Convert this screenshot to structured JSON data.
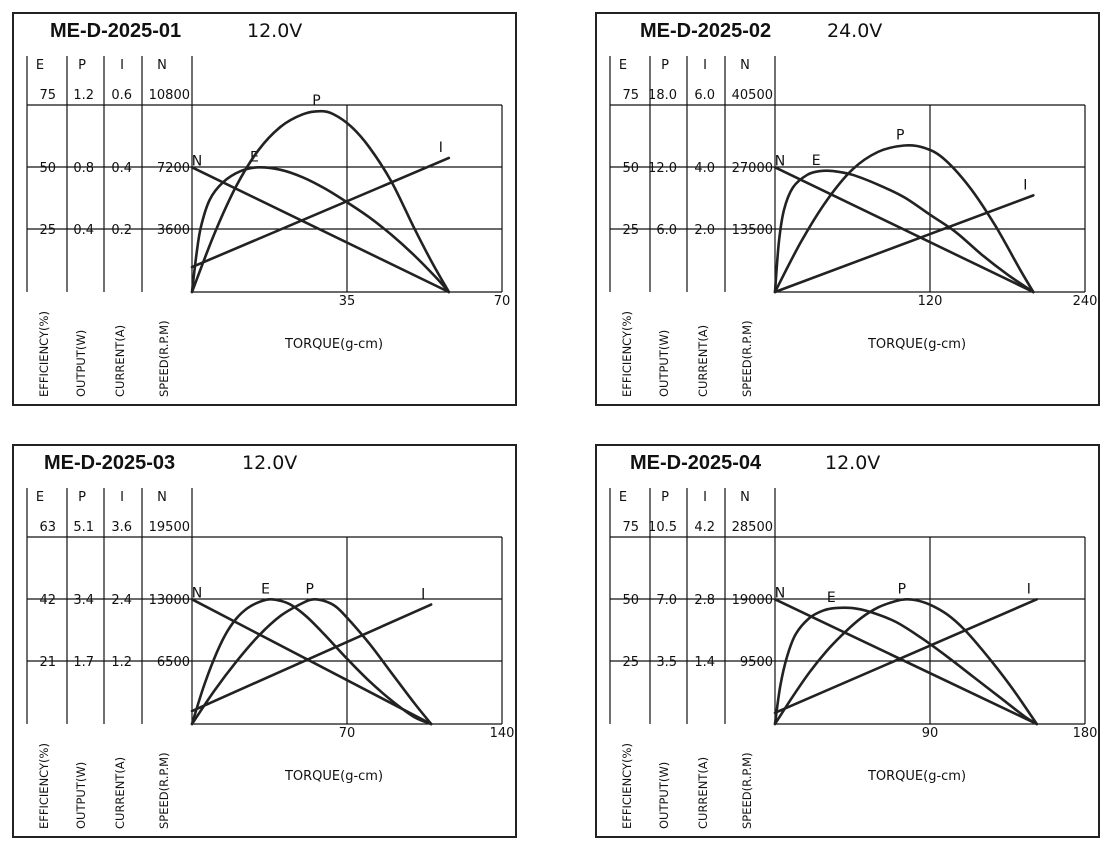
{
  "chart_data": [
    {
      "type": "line",
      "model": "ME-D-2025-01",
      "voltage": "12.0V",
      "column_headers": [
        "E",
        "P",
        "I",
        "N"
      ],
      "axis_labels": [
        "EFFICIENCY(%)",
        "OUTPUT(W)",
        "CURRENT(A)",
        "SPEED(R.P.M)"
      ],
      "xlabel": "TORQUE(g-cm)",
      "x_ticks": [
        "35",
        "70"
      ],
      "xlim": [
        0,
        70
      ],
      "y_table": [
        [
          "75",
          "1.2",
          "0.6",
          "10800"
        ],
        [
          "50",
          "0.8",
          "0.4",
          "7200"
        ],
        [
          "25",
          "0.4",
          "0.2",
          "3600"
        ]
      ],
      "ylim_fraction_of_top": [
        0,
        1
      ],
      "curve_labels": [
        "N",
        "E",
        "P",
        "I"
      ],
      "series": [
        {
          "name": "N",
          "unit": "R.P.M",
          "x": [
            0,
            58
          ],
          "y": [
            7200,
            0
          ]
        },
        {
          "name": "E",
          "unit": "%",
          "x": [
            0,
            1,
            2,
            4,
            7,
            11,
            15,
            20,
            25,
            30,
            35,
            40,
            45,
            50,
            55,
            58
          ],
          "y": [
            0,
            15,
            26,
            37,
            44,
            48.5,
            50,
            49,
            46,
            41.5,
            36,
            30,
            23,
            15,
            6,
            0
          ]
        },
        {
          "name": "P",
          "unit": "W",
          "x": [
            0,
            5,
            10,
            15,
            20,
            25,
            29,
            32,
            36,
            40,
            45,
            50,
            54,
            58
          ],
          "y": [
            0,
            0.37,
            0.68,
            0.91,
            1.06,
            1.14,
            1.16,
            1.14,
            1.06,
            0.93,
            0.71,
            0.42,
            0.2,
            0
          ]
        },
        {
          "name": "I",
          "unit": "A",
          "x": [
            0,
            58
          ],
          "y": [
            0.08,
            0.43
          ]
        }
      ]
    },
    {
      "type": "line",
      "model": "ME-D-2025-02",
      "voltage": "24.0V",
      "column_headers": [
        "E",
        "P",
        "I",
        "N"
      ],
      "axis_labels": [
        "EFFICIENCY(%)",
        "OUTPUT(W)",
        "CURRENT(A)",
        "SPEED(R.P.M)"
      ],
      "xlabel": "TORQUE(g-cm)",
      "x_ticks": [
        "120",
        "240"
      ],
      "xlim": [
        0,
        240
      ],
      "y_table": [
        [
          "75",
          "18.0",
          "6.0",
          "40500"
        ],
        [
          "50",
          "12.0",
          "4.0",
          "27000"
        ],
        [
          "25",
          "6.0",
          "2.0",
          "13500"
        ]
      ],
      "ylim_fraction_of_top": [
        0,
        1
      ],
      "curve_labels": [
        "N",
        "E",
        "P",
        "I"
      ],
      "series": [
        {
          "name": "N",
          "unit": "R.P.M",
          "x": [
            0,
            200
          ],
          "y": [
            27000,
            0
          ]
        },
        {
          "name": "E",
          "unit": "%",
          "x": [
            0,
            3,
            7,
            14,
            25,
            35,
            45,
            60,
            80,
            100,
            120,
            140,
            160,
            180,
            200
          ],
          "y": [
            0,
            20,
            33,
            42,
            47,
            48.5,
            48.5,
            47,
            43,
            38,
            31,
            24,
            15,
            7,
            0
          ]
        },
        {
          "name": "P",
          "unit": "W",
          "x": [
            0,
            20,
            40,
            60,
            80,
            100,
            115,
            130,
            150,
            170,
            190,
            200
          ],
          "y": [
            0,
            4.8,
            8.8,
            11.8,
            13.5,
            14.1,
            13.9,
            12.9,
            10.2,
            6.5,
            2.1,
            0
          ]
        },
        {
          "name": "I",
          "unit": "A",
          "x": [
            0,
            200
          ],
          "y": [
            0,
            3.1
          ]
        }
      ]
    },
    {
      "type": "line",
      "model": "ME-D-2025-03",
      "voltage": "12.0V",
      "column_headers": [
        "E",
        "P",
        "I",
        "N"
      ],
      "axis_labels": [
        "EFFICIENCY(%)",
        "OUTPUT(W)",
        "CURRENT(A)",
        "SPEED(R.P.M)"
      ],
      "xlabel": "TORQUE(g-cm)",
      "x_ticks": [
        "70",
        "140"
      ],
      "xlim": [
        0,
        140
      ],
      "y_table": [
        [
          "63",
          "5.1",
          "3.6",
          "19500"
        ],
        [
          "42",
          "3.4",
          "2.4",
          "13000"
        ],
        [
          "21",
          "1.7",
          "1.2",
          "6500"
        ]
      ],
      "ylim_fraction_of_top": [
        0,
        1
      ],
      "curve_labels": [
        "N",
        "E",
        "P",
        "I"
      ],
      "series": [
        {
          "name": "N",
          "unit": "R.P.M",
          "x": [
            0,
            108
          ],
          "y": [
            13000,
            0
          ]
        },
        {
          "name": "E",
          "unit": "%",
          "x": [
            0,
            5,
            10,
            15,
            20,
            25,
            30,
            35,
            40,
            45,
            52,
            60,
            70,
            80,
            90,
            100,
            108
          ],
          "y": [
            0,
            12,
            22,
            30,
            35.5,
            39,
            41,
            42,
            41.5,
            40,
            36,
            30,
            22,
            14.5,
            8,
            2.5,
            0
          ]
        },
        {
          "name": "P",
          "unit": "W",
          "x": [
            0,
            10,
            20,
            30,
            40,
            50,
            55,
            60,
            65,
            70,
            80,
            90,
            100,
            108
          ],
          "y": [
            0,
            0.9,
            1.7,
            2.4,
            2.95,
            3.3,
            3.4,
            3.35,
            3.2,
            2.9,
            2.2,
            1.4,
            0.6,
            0
          ]
        },
        {
          "name": "I",
          "unit": "A",
          "x": [
            0,
            108
          ],
          "y": [
            0.25,
            2.3
          ]
        }
      ]
    },
    {
      "type": "line",
      "model": "ME-D-2025-04",
      "voltage": "12.0V",
      "column_headers": [
        "E",
        "P",
        "I",
        "N"
      ],
      "axis_labels": [
        "EFFICIENCY(%)",
        "OUTPUT(W)",
        "CURRENT(A)",
        "SPEED(R.P.M)"
      ],
      "xlabel": "TORQUE(g-cm)",
      "x_ticks": [
        "90",
        "180"
      ],
      "xlim": [
        0,
        180
      ],
      "y_table": [
        [
          "75",
          "10.5",
          "4.2",
          "28500"
        ],
        [
          "50",
          "7.0",
          "2.8",
          "19000"
        ],
        [
          "25",
          "3.5",
          "1.4",
          "9500"
        ]
      ],
      "ylim_fraction_of_top": [
        0,
        1
      ],
      "curve_labels": [
        "N",
        "E",
        "P",
        "I"
      ],
      "series": [
        {
          "name": "N",
          "unit": "R.P.M",
          "x": [
            0,
            152
          ],
          "y": [
            19000,
            0
          ]
        },
        {
          "name": "E",
          "unit": "%",
          "x": [
            0,
            3,
            7,
            12,
            20,
            28,
            35,
            45,
            55,
            70,
            85,
            100,
            115,
            130,
            145,
            152
          ],
          "y": [
            0,
            15,
            27,
            36,
            42.5,
            45.5,
            46.5,
            46.5,
            45,
            41,
            34.5,
            27,
            19,
            11,
            3,
            0
          ]
        },
        {
          "name": "P",
          "unit": "W",
          "x": [
            0,
            10,
            20,
            30,
            40,
            50,
            60,
            70,
            76,
            82,
            90,
            100,
            110,
            120,
            130,
            140,
            152
          ],
          "y": [
            0,
            1.5,
            2.9,
            4.1,
            5.1,
            5.95,
            6.55,
            6.9,
            7.0,
            6.95,
            6.7,
            6.15,
            5.3,
            4.2,
            3.0,
            1.7,
            0
          ]
        },
        {
          "name": "I",
          "unit": "A",
          "x": [
            0,
            152
          ],
          "y": [
            0.25,
            2.8
          ]
        }
      ]
    }
  ]
}
